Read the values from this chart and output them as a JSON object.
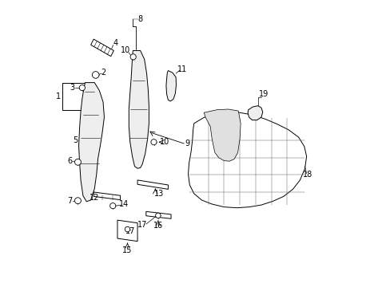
{
  "bg_color": "#ffffff",
  "line_color": "#000000",
  "lw": 0.7
}
